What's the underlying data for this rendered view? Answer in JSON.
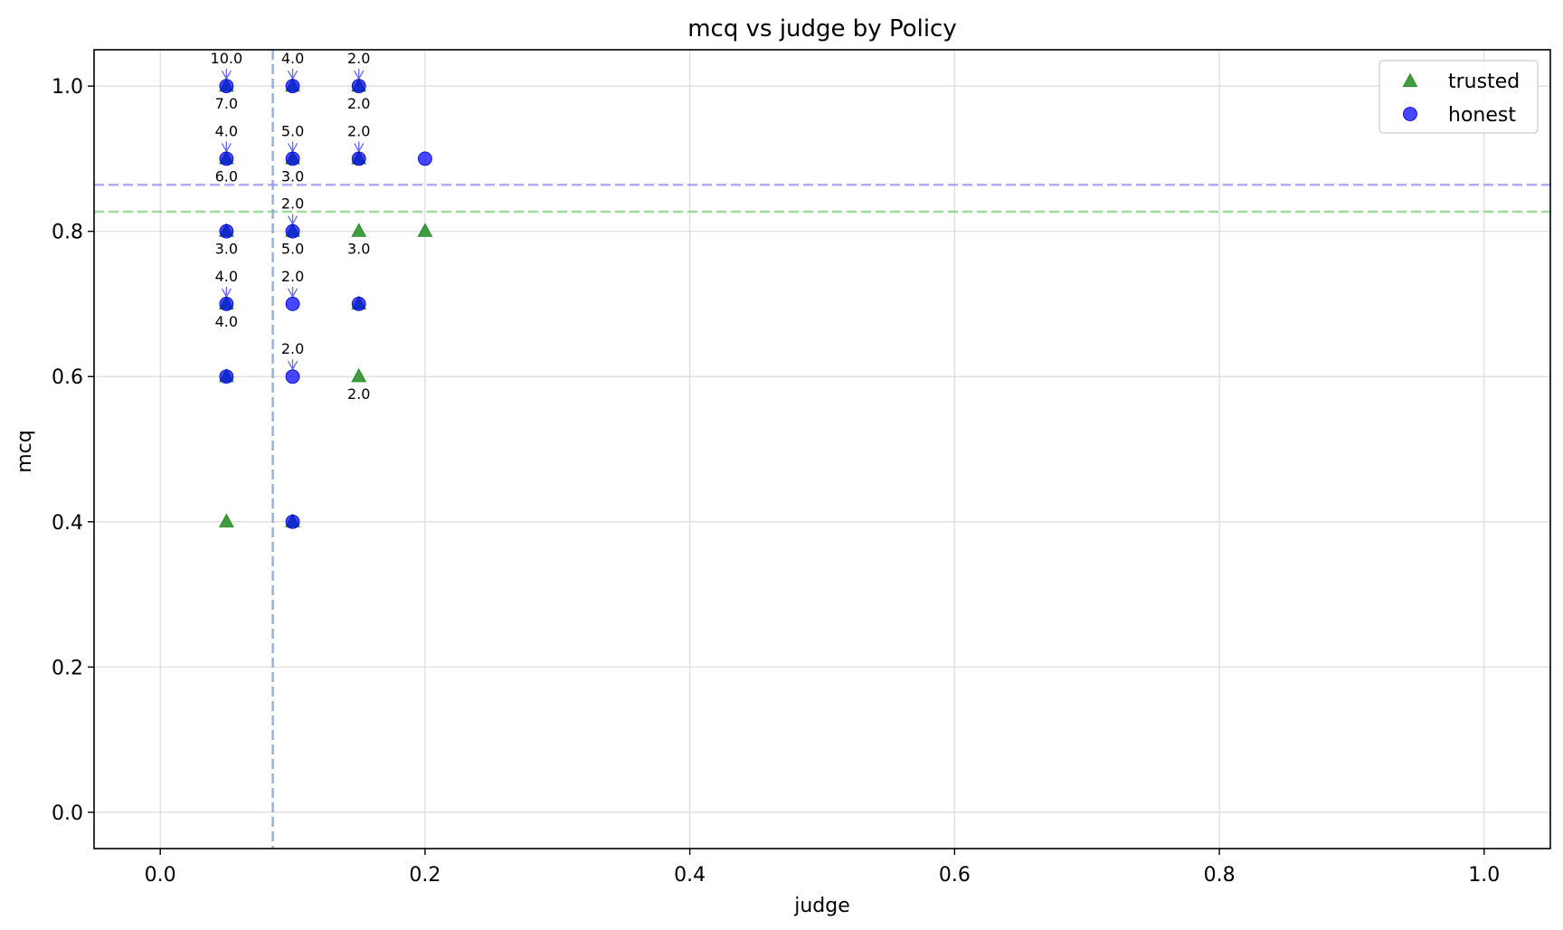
{
  "chart_data": {
    "type": "scatter",
    "title": "mcq vs judge by Policy",
    "xlabel": "judge",
    "ylabel": "mcq",
    "xlim": [
      -0.05,
      1.05
    ],
    "ylim": [
      -0.05,
      1.05
    ],
    "xticks": [
      "0.0",
      "0.2",
      "0.4",
      "0.6",
      "0.8",
      "1.0"
    ],
    "yticks": [
      "0.0",
      "0.2",
      "0.4",
      "0.6",
      "0.8",
      "1.0"
    ],
    "grid": true,
    "legend_position": "top-right",
    "series": [
      {
        "name": "trusted",
        "marker": "triangle",
        "color": "#228B22",
        "points": [
          {
            "x": 0.05,
            "y": 1.0
          },
          {
            "x": 0.1,
            "y": 1.0
          },
          {
            "x": 0.15,
            "y": 1.0
          },
          {
            "x": 0.05,
            "y": 0.9
          },
          {
            "x": 0.1,
            "y": 0.9
          },
          {
            "x": 0.15,
            "y": 0.9
          },
          {
            "x": 0.05,
            "y": 0.8
          },
          {
            "x": 0.1,
            "y": 0.8
          },
          {
            "x": 0.15,
            "y": 0.8
          },
          {
            "x": 0.2,
            "y": 0.8
          },
          {
            "x": 0.05,
            "y": 0.7
          },
          {
            "x": 0.15,
            "y": 0.7
          },
          {
            "x": 0.05,
            "y": 0.6
          },
          {
            "x": 0.15,
            "y": 0.6
          },
          {
            "x": 0.05,
            "y": 0.4
          },
          {
            "x": 0.1,
            "y": 0.4
          }
        ],
        "mean_judge": 0.085,
        "mean_mcq": 0.827
      },
      {
        "name": "honest",
        "marker": "circle",
        "color": "#0000FF",
        "points": [
          {
            "x": 0.05,
            "y": 1.0
          },
          {
            "x": 0.1,
            "y": 1.0
          },
          {
            "x": 0.15,
            "y": 1.0
          },
          {
            "x": 0.05,
            "y": 0.9
          },
          {
            "x": 0.1,
            "y": 0.9
          },
          {
            "x": 0.15,
            "y": 0.9
          },
          {
            "x": 0.2,
            "y": 0.9
          },
          {
            "x": 0.05,
            "y": 0.8
          },
          {
            "x": 0.1,
            "y": 0.8
          },
          {
            "x": 0.05,
            "y": 0.7
          },
          {
            "x": 0.1,
            "y": 0.7
          },
          {
            "x": 0.15,
            "y": 0.7
          },
          {
            "x": 0.05,
            "y": 0.6
          },
          {
            "x": 0.1,
            "y": 0.6
          },
          {
            "x": 0.1,
            "y": 0.4
          }
        ],
        "mean_judge": 0.085,
        "mean_mcq": 0.864
      }
    ],
    "annotations": [
      {
        "x": 0.05,
        "y": 1.0,
        "text": "10.0",
        "pos": "above",
        "arrow": true
      },
      {
        "x": 0.05,
        "y": 1.0,
        "text": "7.0",
        "pos": "below"
      },
      {
        "x": 0.1,
        "y": 1.0,
        "text": "4.0",
        "pos": "above",
        "arrow": true
      },
      {
        "x": 0.15,
        "y": 1.0,
        "text": "2.0",
        "pos": "above",
        "arrow": true
      },
      {
        "x": 0.15,
        "y": 1.0,
        "text": "2.0",
        "pos": "below"
      },
      {
        "x": 0.05,
        "y": 0.9,
        "text": "4.0",
        "pos": "above",
        "arrow": true
      },
      {
        "x": 0.05,
        "y": 0.9,
        "text": "6.0",
        "pos": "below"
      },
      {
        "x": 0.1,
        "y": 0.9,
        "text": "5.0",
        "pos": "above",
        "arrow": true
      },
      {
        "x": 0.1,
        "y": 0.9,
        "text": "3.0",
        "pos": "below"
      },
      {
        "x": 0.15,
        "y": 0.9,
        "text": "2.0",
        "pos": "above",
        "arrow": true
      },
      {
        "x": 0.1,
        "y": 0.8,
        "text": "2.0",
        "pos": "above",
        "arrow": true
      },
      {
        "x": 0.05,
        "y": 0.8,
        "text": "3.0",
        "pos": "below"
      },
      {
        "x": 0.1,
        "y": 0.8,
        "text": "5.0",
        "pos": "below"
      },
      {
        "x": 0.15,
        "y": 0.8,
        "text": "3.0",
        "pos": "below"
      },
      {
        "x": 0.05,
        "y": 0.7,
        "text": "4.0",
        "pos": "above",
        "arrow": true
      },
      {
        "x": 0.05,
        "y": 0.7,
        "text": "4.0",
        "pos": "below"
      },
      {
        "x": 0.1,
        "y": 0.7,
        "text": "2.0",
        "pos": "above",
        "arrow": true
      },
      {
        "x": 0.1,
        "y": 0.6,
        "text": "2.0",
        "pos": "above",
        "arrow": true
      },
      {
        "x": 0.15,
        "y": 0.6,
        "text": "2.0",
        "pos": "below"
      }
    ]
  }
}
